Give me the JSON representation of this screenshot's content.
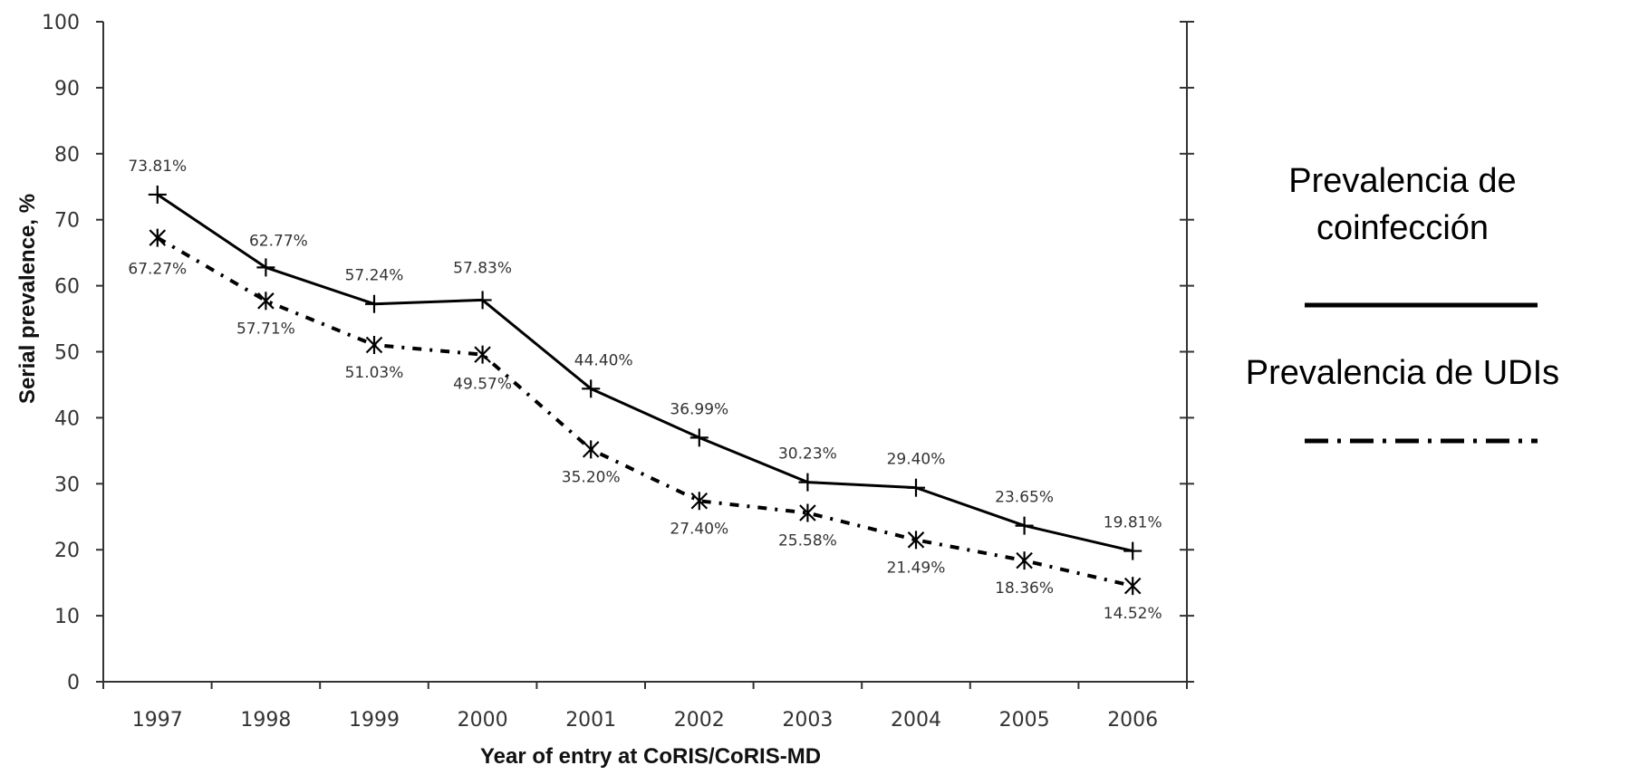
{
  "chart_data": {
    "type": "line",
    "xlabel": "Year of entry at CoRIS/CoRIS-MD",
    "ylabel": "Serial prevalence, %",
    "ylim": [
      0,
      100
    ],
    "yticks": [
      0,
      10,
      20,
      30,
      40,
      50,
      60,
      70,
      80,
      90,
      100
    ],
    "categories": [
      "1997",
      "1998",
      "1999",
      "2000",
      "2001",
      "2002",
      "2003",
      "2004",
      "2005",
      "2006"
    ],
    "grid": false,
    "legend_position": "right",
    "series": [
      {
        "name": "Prevalencia de coinfección",
        "style": "solid",
        "marker": "plus",
        "color": "#000000",
        "values": [
          73.81,
          62.77,
          57.24,
          57.83,
          44.4,
          36.99,
          30.23,
          29.4,
          23.65,
          19.81
        ],
        "labels": [
          "73.81%",
          "62.77%",
          "57.24%",
          "57.83%",
          "44.40%",
          "36.99%",
          "30.23%",
          "29.40%",
          "23.65%",
          "19.81%"
        ]
      },
      {
        "name": "Prevalencia de UDIs",
        "style": "dash-dot",
        "marker": "asterisk",
        "color": "#000000",
        "values": [
          67.27,
          57.71,
          51.03,
          49.57,
          35.2,
          27.4,
          25.58,
          21.49,
          18.36,
          14.52
        ],
        "labels": [
          "67.27%",
          "57.71%",
          "51.03%",
          "49.57%",
          "35.20%",
          "27.40%",
          "25.58%",
          "21.49%",
          "18.36%",
          "14.52%"
        ]
      }
    ]
  },
  "legend": {
    "items": [
      {
        "line1": "Prevalencia de",
        "line2": "coinfección"
      },
      {
        "line1": "Prevalencia de UDIs",
        "line2": ""
      }
    ]
  }
}
